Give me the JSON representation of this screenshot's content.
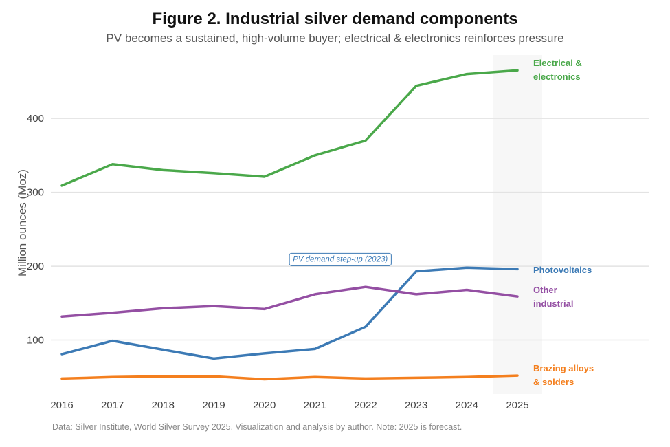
{
  "header": {
    "title": "Figure 2. Industrial silver demand components",
    "subtitle": "PV becomes a sustained, high-volume buyer; electrical & electronics reinforces pressure"
  },
  "caption": "Data: Silver Institute, World Silver Survey 2025. Visualization and analysis by author. Note: 2025 is forecast.",
  "chart_data": {
    "type": "line",
    "title": "Figure 2. Industrial silver demand components",
    "subtitle": "PV becomes a sustained, high-volume buyer; electrical & electronics reinforces pressure",
    "xlabel": "",
    "ylabel": "Million ounces (Moz)",
    "x": [
      2016,
      2017,
      2018,
      2019,
      2020,
      2021,
      2022,
      2023,
      2024,
      2025
    ],
    "xticks": [
      "2016",
      "2017",
      "2018",
      "2019",
      "2020",
      "2021",
      "2022",
      "2023",
      "2024",
      "2025"
    ],
    "yticks": [
      100,
      200,
      300,
      400
    ],
    "ylim": [
      27,
      482
    ],
    "grid": "horizontal",
    "forecast_year": 2025,
    "series": [
      {
        "name": "Electrical & electronics",
        "label_lines": [
          "Electrical &",
          "electronics"
        ],
        "color": "#4aa84a",
        "values": [
          309,
          338,
          330,
          326,
          321,
          350,
          370,
          444,
          460,
          465
        ]
      },
      {
        "name": "Photovoltaics",
        "label_lines": [
          "Photovoltaics"
        ],
        "color": "#3c7ab5",
        "values": [
          81,
          99,
          87,
          75,
          82,
          88,
          118,
          193,
          198,
          196
        ]
      },
      {
        "name": "Other industrial",
        "label_lines": [
          "Other",
          "industrial"
        ],
        "color": "#944fa3",
        "values": [
          132,
          137,
          143,
          146,
          142,
          162,
          172,
          162,
          168,
          159
        ]
      },
      {
        "name": "Brazing alloys & solders",
        "label_lines": [
          "Brazing alloys",
          "& solders"
        ],
        "color": "#f47f1e",
        "values": [
          48,
          50,
          51,
          51,
          47,
          50,
          48,
          49,
          50,
          52
        ]
      }
    ],
    "annotations": [
      {
        "text": "PV demand step-up (2023)",
        "x": 2021.5,
        "y": 210
      }
    ]
  }
}
